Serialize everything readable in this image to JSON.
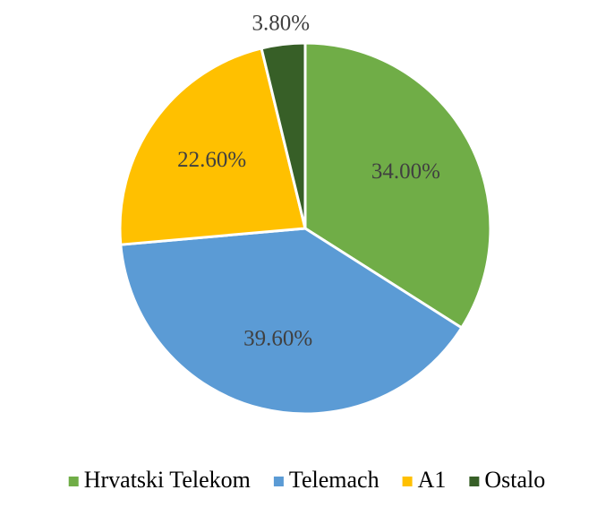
{
  "chart_data": {
    "type": "pie",
    "categories": [
      "Hrvatski Telekom",
      "Telemach",
      "A1",
      "Ostalo"
    ],
    "values": [
      34,
      39.6,
      22.6,
      3.8
    ],
    "value_labels": [
      "34.00%",
      "39.60%",
      "22.60%",
      "3.80%"
    ],
    "colors": [
      "#70ad47",
      "#5b9bd5",
      "#ffc000",
      "#375f27"
    ],
    "legend": "bottom"
  }
}
